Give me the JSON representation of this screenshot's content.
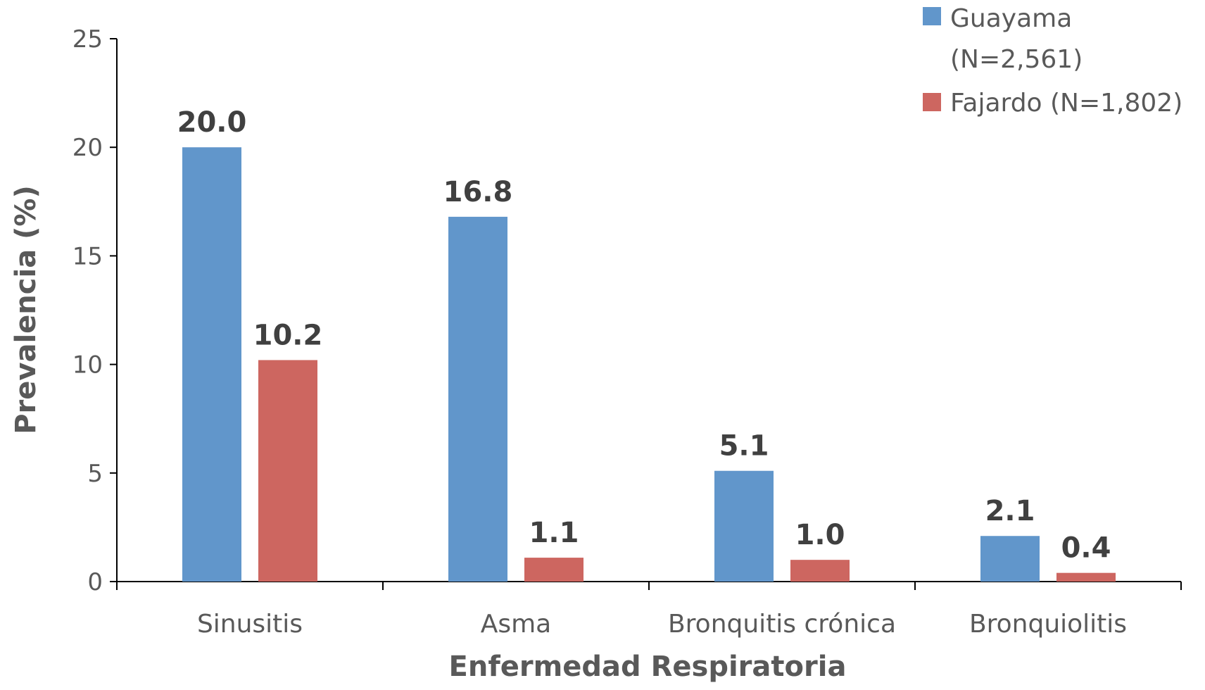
{
  "chart_data": {
    "type": "bar",
    "title": "",
    "xlabel": "Enfermedad Respiratoria",
    "ylabel": "Prevalencia (%)",
    "ylim": [
      0,
      25
    ],
    "yticks": [
      0,
      5,
      10,
      15,
      20,
      25
    ],
    "categories": [
      "Sinusitis",
      "Asma",
      "Bronquitis crónica",
      "Bronquiolitis"
    ],
    "series": [
      {
        "name": "Guayama",
        "name_line2": "(N=2,561)",
        "color": "#6196CB",
        "values": [
          20.0,
          16.8,
          5.1,
          2.1
        ],
        "labels": [
          "20.0",
          "16.8",
          "5.1",
          "2.1"
        ]
      },
      {
        "name": "Fajardo (N=1,802)",
        "color": "#CD6660",
        "values": [
          10.2,
          1.1,
          1.0,
          0.4
        ],
        "labels": [
          "10.2",
          "1.1",
          "1.0",
          "0.4"
        ]
      }
    ],
    "legend_position": "top-right",
    "grid": false
  }
}
